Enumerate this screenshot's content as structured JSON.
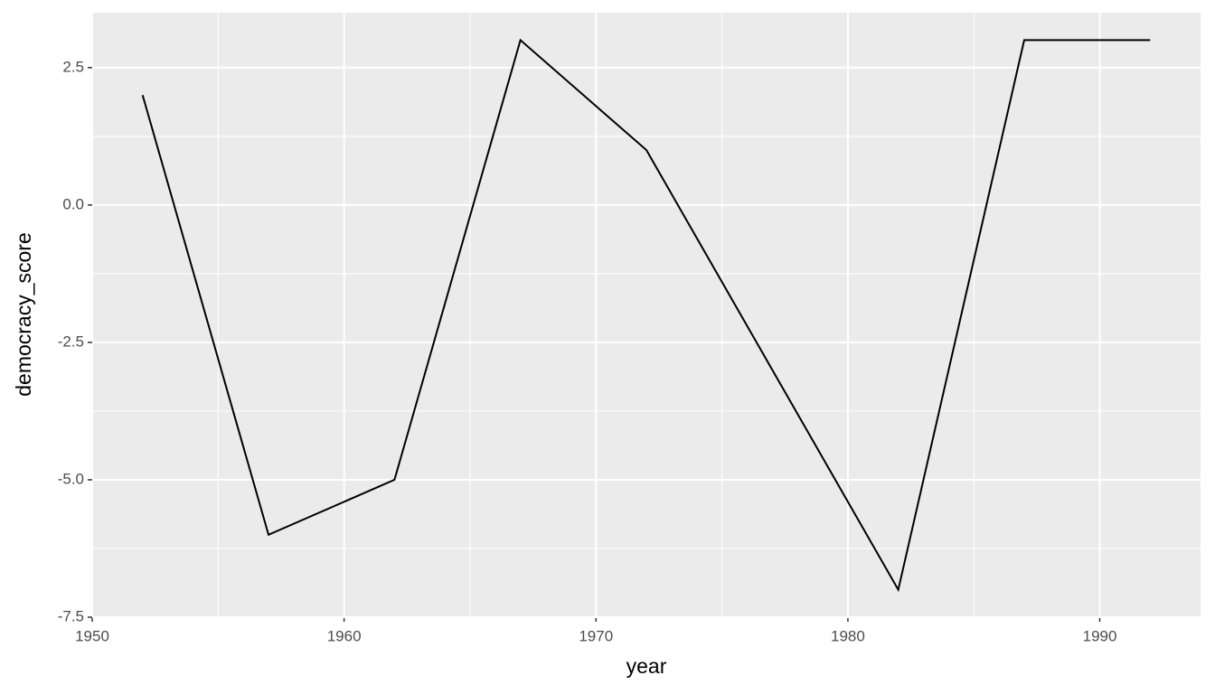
{
  "chart_data": {
    "type": "line",
    "x_label": "year",
    "y_label": "democracy_score",
    "x": [
      1952,
      1957,
      1962,
      1967,
      1972,
      1977,
      1982,
      1987,
      1992
    ],
    "series": [
      {
        "color": "#000000",
        "values": [
          2,
          -6,
          -5,
          3,
          1,
          -3,
          -7,
          3,
          3
        ]
      }
    ],
    "xlim": [
      1950,
      1994
    ],
    "xticks": [
      1950,
      1960,
      1970,
      1980,
      1990
    ],
    "minor_xticks": [
      1955,
      1965,
      1975,
      1985
    ],
    "ylim": [
      -7.5,
      3.5
    ],
    "yticks": [
      2.5,
      {
        "value": 0,
        "label": "0.0"
      },
      -2.5,
      {
        "value": -5,
        "label": "-5.0"
      },
      -7.5
    ],
    "minor_yticks": [
      1.25,
      -1.25,
      -3.75,
      -6.25
    ],
    "grid": true,
    "background": "#ebebeb"
  }
}
